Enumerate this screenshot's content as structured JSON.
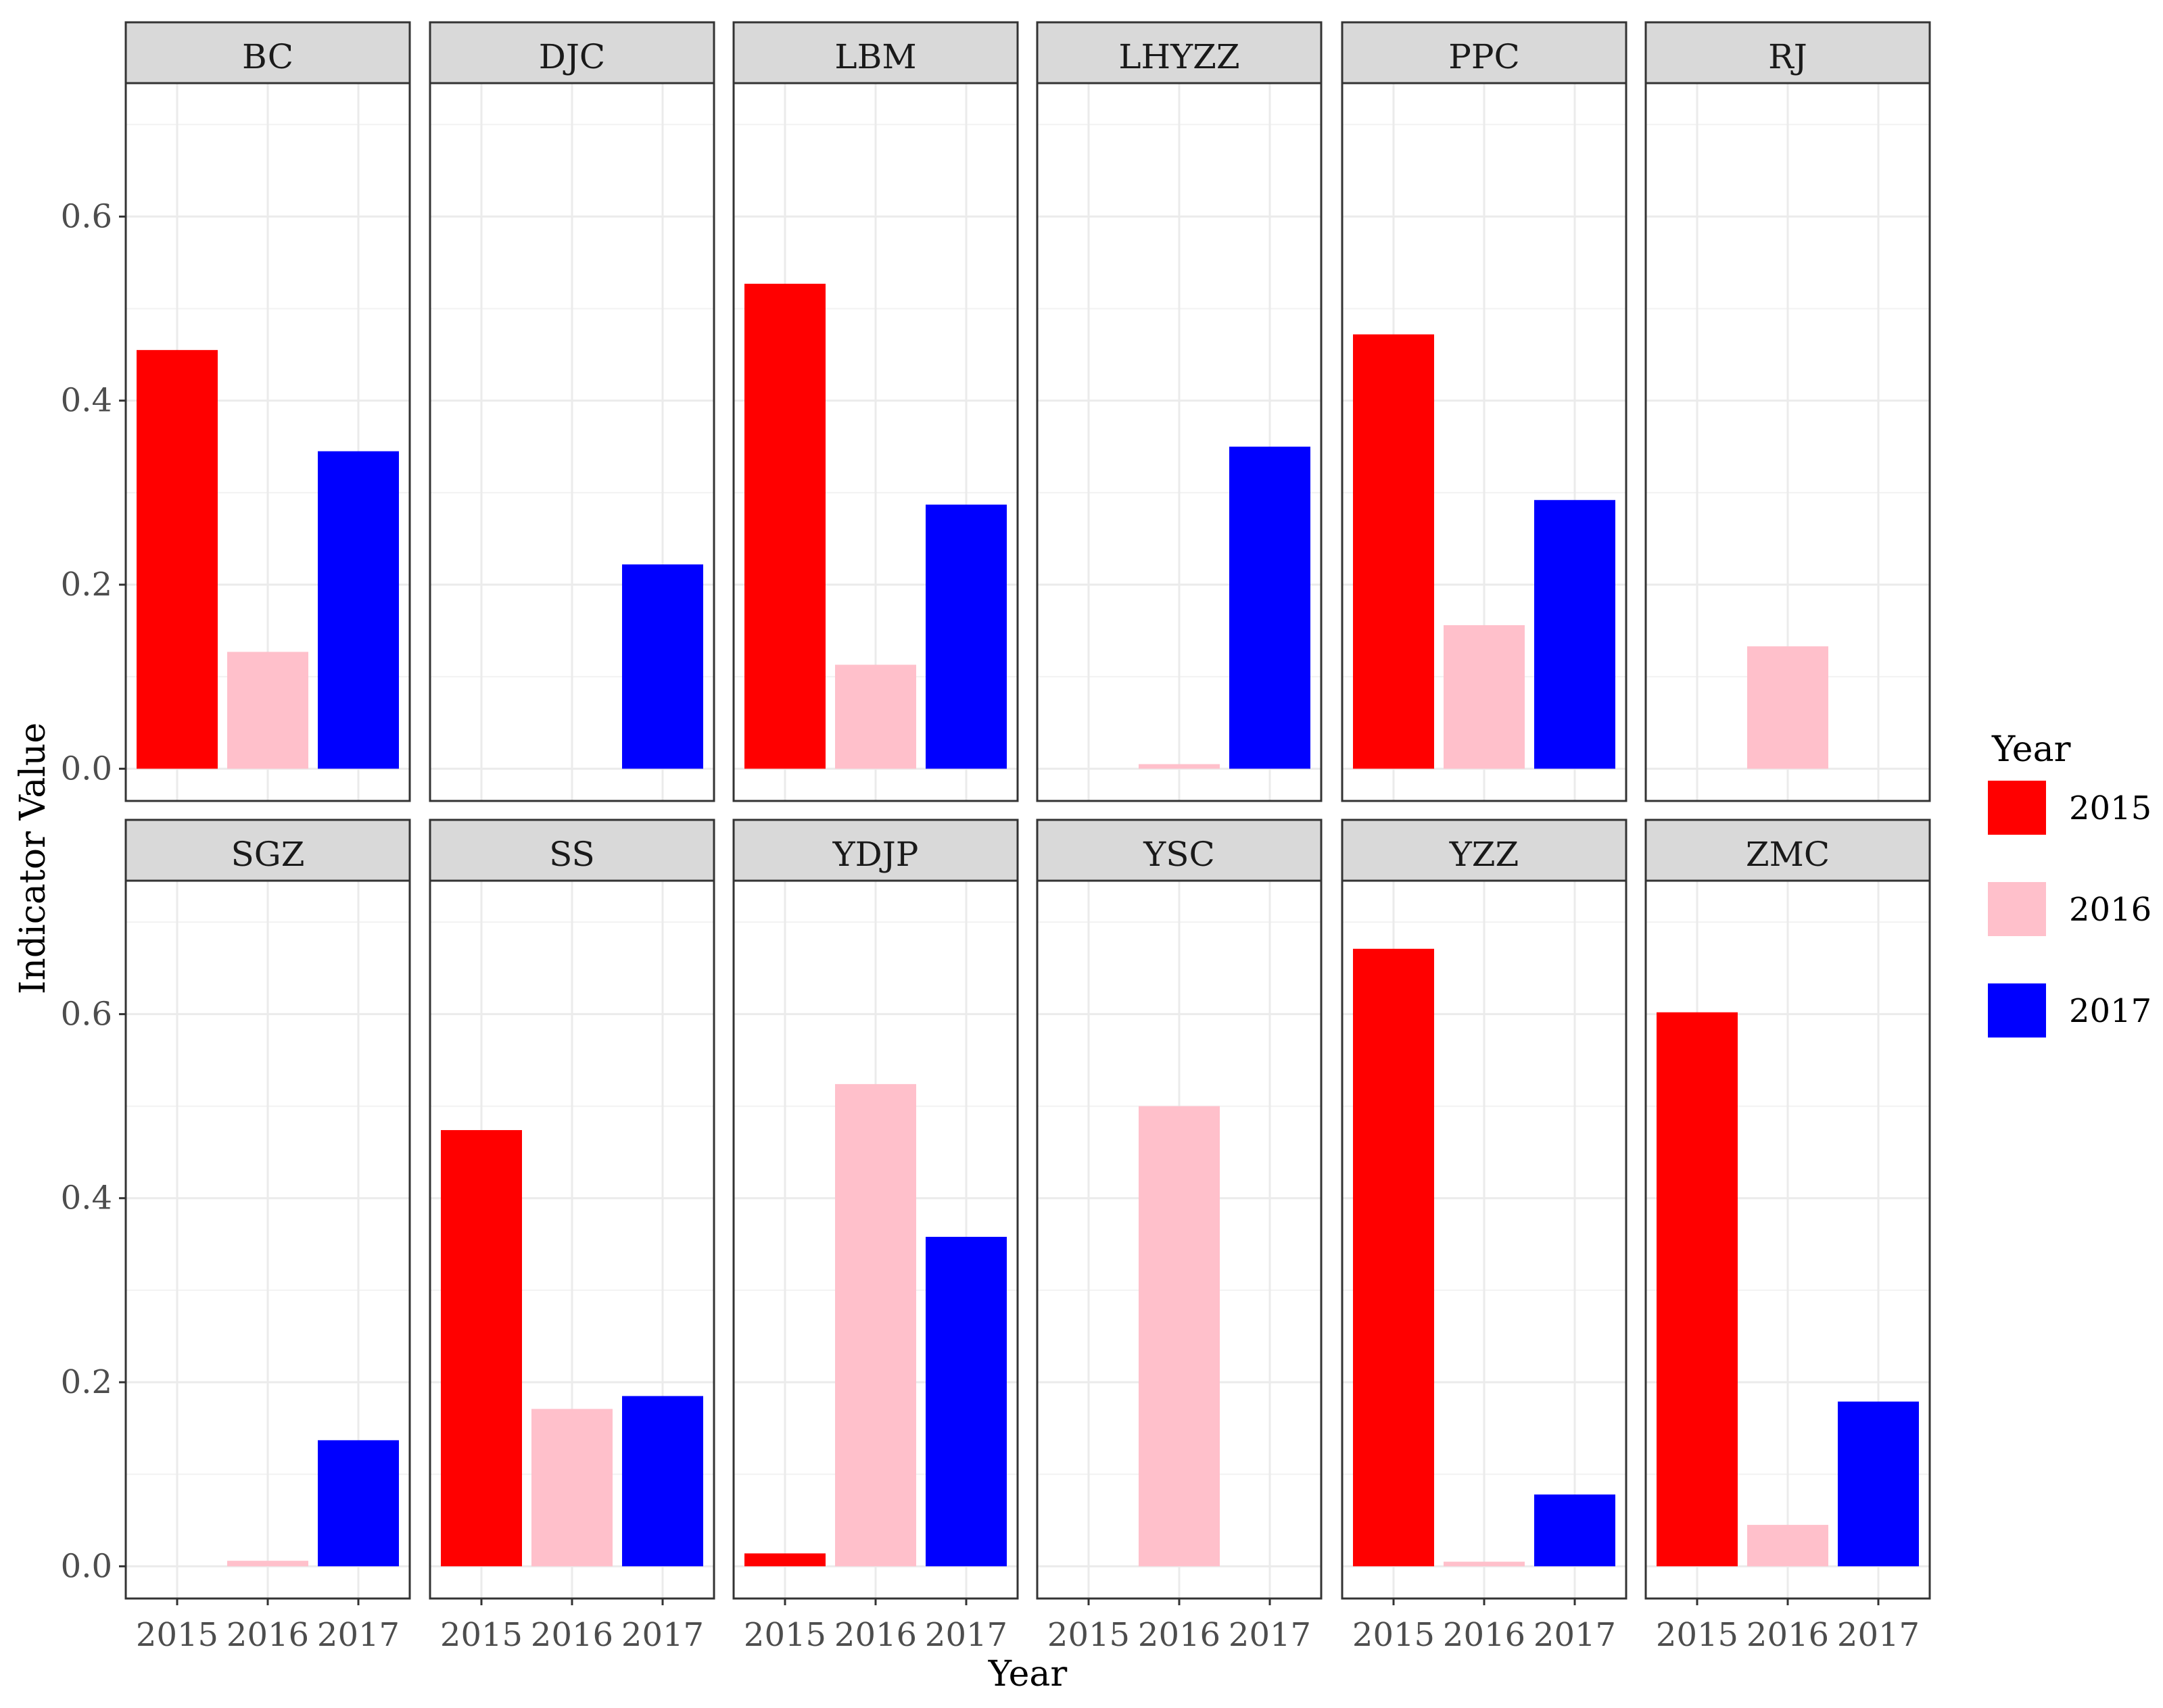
{
  "chart_data": {
    "type": "bar",
    "faceted": true,
    "layout": "2 rows x 6 columns",
    "xlabel": "Year",
    "ylabel": "Indicator Value",
    "ylim": [
      -0.035,
      0.745
    ],
    "yticks": [
      0.0,
      0.2,
      0.4,
      0.6
    ],
    "ytick_labels": [
      "0.0",
      "0.2",
      "0.4",
      "0.6"
    ],
    "categories": [
      "2015",
      "2016",
      "2017"
    ],
    "legend": {
      "title": "Year",
      "position": "right",
      "entries": [
        {
          "label": "2015",
          "color": "#ff0000"
        },
        {
          "label": "2016",
          "color": "#ffc0cb"
        },
        {
          "label": "2017",
          "color": "#0000ff"
        }
      ]
    },
    "grid": true,
    "panels": [
      {
        "name": "BC",
        "values": [
          0.455,
          0.127,
          0.345
        ]
      },
      {
        "name": "DJC",
        "values": [
          null,
          null,
          0.222
        ]
      },
      {
        "name": "LBM",
        "values": [
          0.527,
          0.113,
          0.287
        ]
      },
      {
        "name": "LHYZZ",
        "values": [
          null,
          0.005,
          0.35
        ]
      },
      {
        "name": "PPC",
        "values": [
          0.472,
          0.156,
          0.292
        ]
      },
      {
        "name": "RJ",
        "values": [
          null,
          0.133,
          null
        ]
      },
      {
        "name": "SGZ",
        "values": [
          null,
          0.006,
          0.137
        ]
      },
      {
        "name": "SS",
        "values": [
          0.474,
          0.171,
          0.185
        ]
      },
      {
        "name": "YDJP",
        "values": [
          0.014,
          0.524,
          0.358
        ]
      },
      {
        "name": "YSC",
        "values": [
          null,
          0.5,
          null
        ]
      },
      {
        "name": "YZZ",
        "values": [
          0.671,
          0.005,
          0.078
        ]
      },
      {
        "name": "ZMC",
        "values": [
          0.602,
          0.045,
          0.179
        ]
      }
    ]
  }
}
